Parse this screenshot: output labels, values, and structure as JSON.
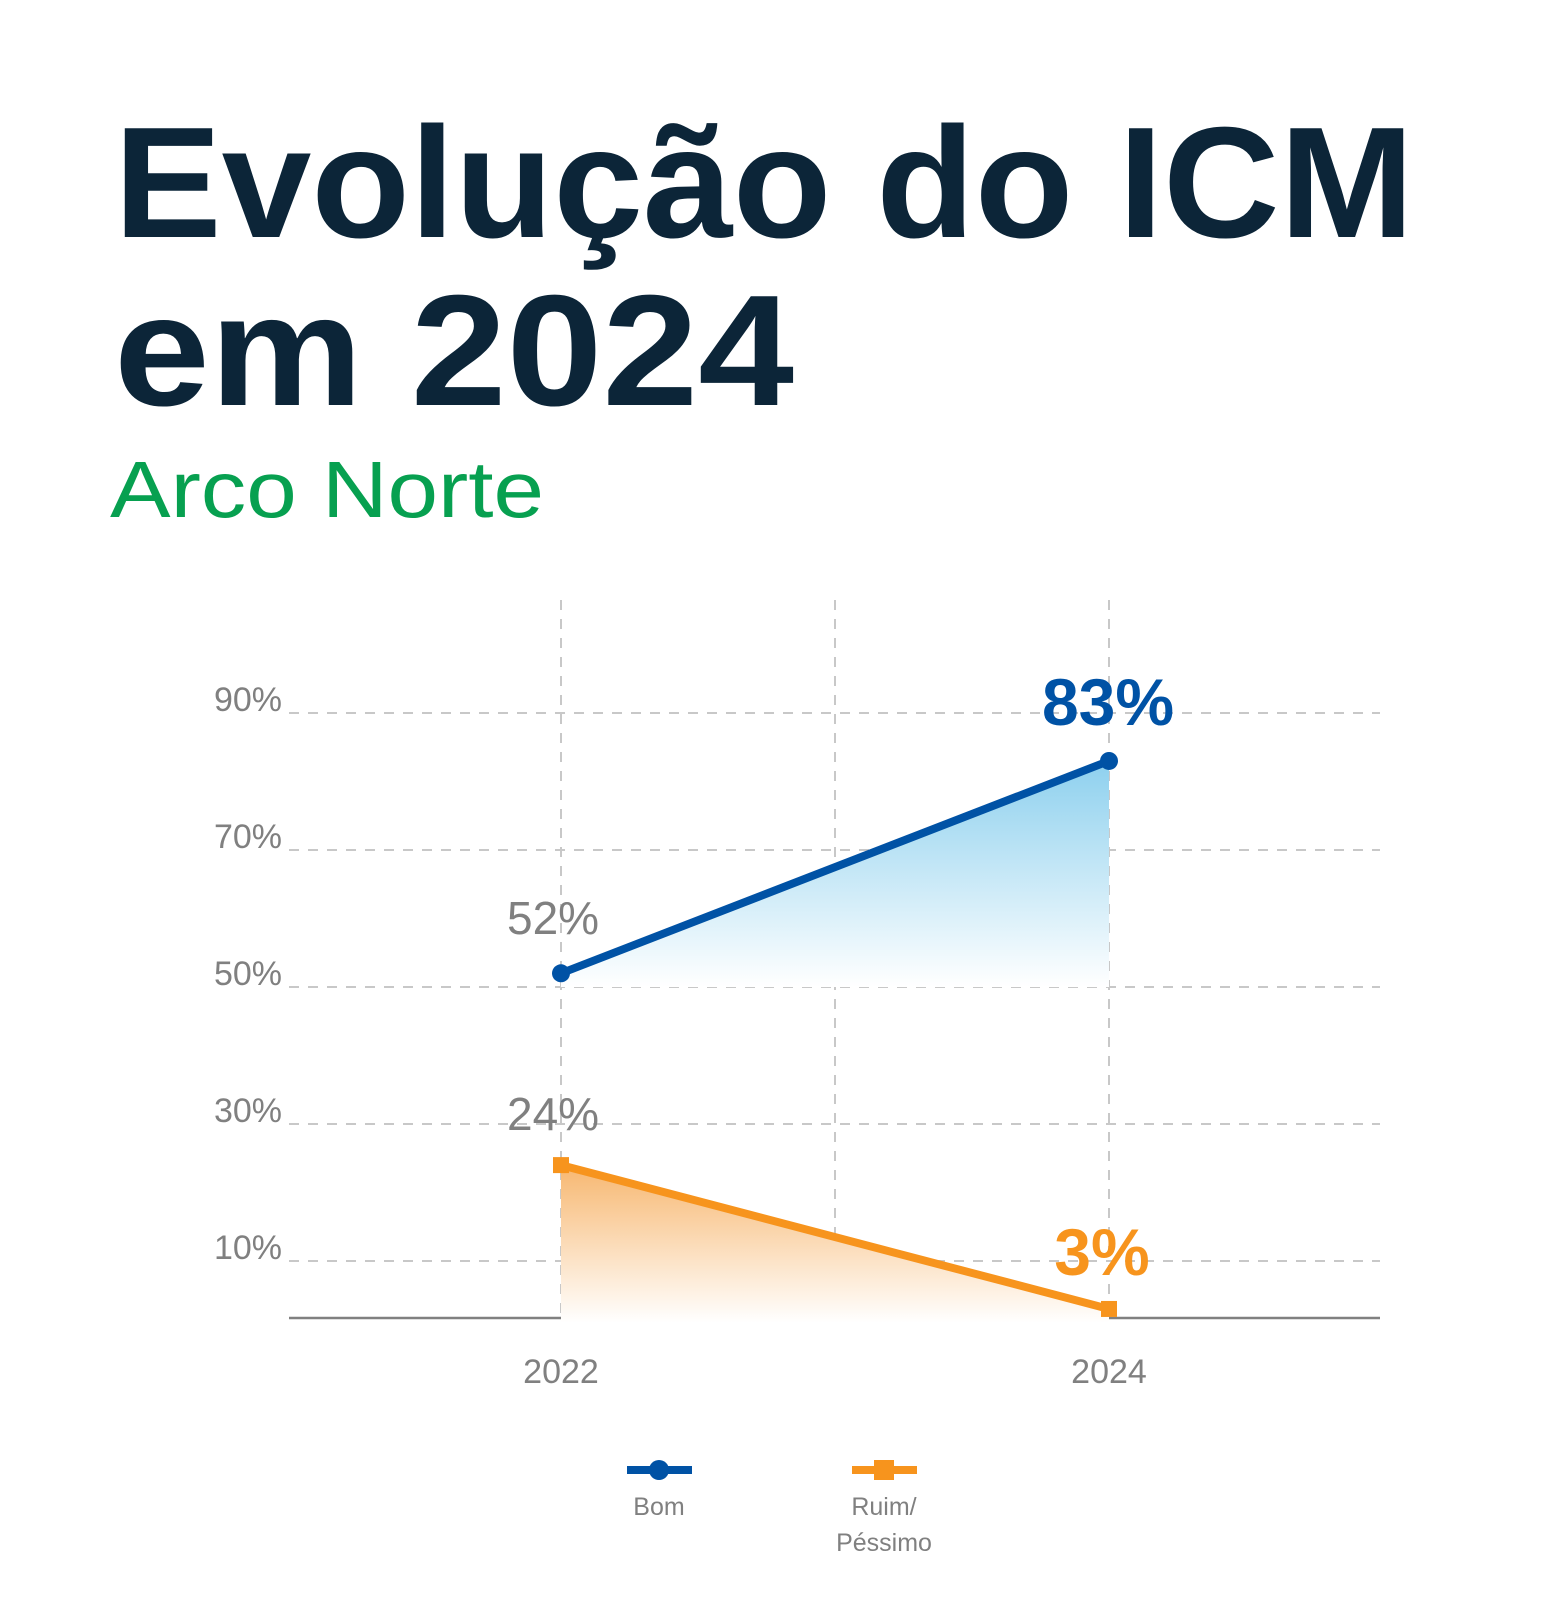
{
  "title_line1": "Evolução do ICM",
  "title_line2": "em 2024",
  "subtitle": "Arco Norte",
  "colors": {
    "title": "#0c2538",
    "subtitle": "#07a050",
    "bom": "#0052a5",
    "ruim": "#f7941d",
    "text": "#808080"
  },
  "chart_data": {
    "type": "line",
    "categories": [
      "2022",
      "2024"
    ],
    "x_ticks": [
      "2022",
      "",
      "2024"
    ],
    "y_ticks": [
      "10%",
      "30%",
      "50%",
      "70%",
      "90%"
    ],
    "y_tick_values": [
      10,
      30,
      50,
      70,
      90
    ],
    "ylim": [
      0,
      100
    ],
    "grid": true,
    "legend_position": "bottom",
    "series": [
      {
        "name": "Bom",
        "values": [
          52,
          83
        ],
        "labels": [
          "52%",
          "83%"
        ],
        "marker": "circle",
        "color": "#0052a5",
        "area_fill": "#8dd0ee"
      },
      {
        "name": "Ruim/ Péssimo",
        "name_lines": [
          "Ruim/",
          "Péssimo"
        ],
        "values": [
          24,
          3
        ],
        "labels": [
          "24%",
          "3%"
        ],
        "marker": "square",
        "color": "#f7941d",
        "area_fill": "#f7b770"
      }
    ]
  }
}
